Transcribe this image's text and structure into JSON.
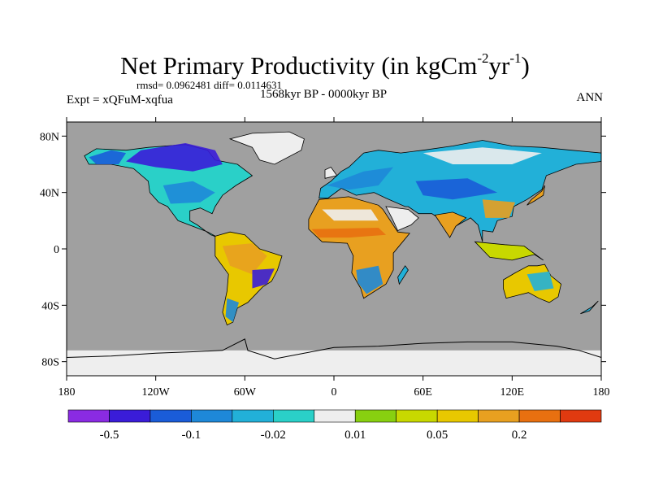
{
  "title": {
    "main": "Net Primary Productivity (in kgCm",
    "exp1": "-2",
    "mid": "yr",
    "exp2": "-1",
    "end": ")"
  },
  "stats": "rmsd= 0.0962481 diff= 0.0114631",
  "left_label": "Expt = xQFuM-xqfua",
  "center_label": "1568kyr BP - 0000kyr BP",
  "right_label": "ANN",
  "axes": {
    "lat_ticks": [
      {
        "label": "80N",
        "lat": 80
      },
      {
        "label": "40N",
        "lat": 40
      },
      {
        "label": "0",
        "lat": 0
      },
      {
        "label": "40S",
        "lat": -40
      },
      {
        "label": "80S",
        "lat": -80
      }
    ],
    "lon_ticks": [
      {
        "label": "180",
        "lon": -180
      },
      {
        "label": "120W",
        "lon": -120
      },
      {
        "label": "60W",
        "lon": -60
      },
      {
        "label": "0",
        "lon": 0
      },
      {
        "label": "60E",
        "lon": 60
      },
      {
        "label": "120E",
        "lon": 120
      },
      {
        "label": "180",
        "lon": 180
      }
    ]
  },
  "colors": {
    "ocean": "#a0a0a0",
    "no_change": "#eeeeee",
    "coast": "#000000"
  },
  "colorbar": {
    "colors": [
      "#8a2be2",
      "#3a1cd8",
      "#1a5cd8",
      "#1e88d8",
      "#22b0d8",
      "#2ad0c8",
      "#eeeeee",
      "#88d010",
      "#c8d800",
      "#e8c800",
      "#e8a020",
      "#e87010",
      "#e03a10"
    ],
    "labels": [
      {
        "text": "-0.5",
        "boundary": 1
      },
      {
        "text": "-0.1",
        "boundary": 3
      },
      {
        "text": "-0.02",
        "boundary": 5
      },
      {
        "text": "0.01",
        "boundary": 7
      },
      {
        "text": "0.05",
        "boundary": 9
      },
      {
        "text": "0.2",
        "boundary": 11
      }
    ]
  }
}
